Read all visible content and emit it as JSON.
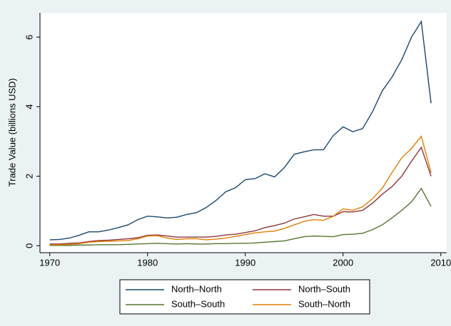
{
  "chart_data": {
    "type": "line",
    "y_label": "Trade Value (billions USD)",
    "x": [
      1970,
      1971,
      1972,
      1973,
      1974,
      1975,
      1976,
      1977,
      1978,
      1979,
      1980,
      1981,
      1982,
      1983,
      1984,
      1985,
      1986,
      1987,
      1988,
      1989,
      1990,
      1991,
      1992,
      1993,
      1994,
      1995,
      1996,
      1997,
      1998,
      1999,
      2000,
      2001,
      2002,
      2003,
      2004,
      2005,
      2006,
      2007,
      2008,
      2009
    ],
    "series": [
      {
        "name": "North–North",
        "color": "#1a476f",
        "values": [
          0.17,
          0.18,
          0.22,
          0.3,
          0.4,
          0.4,
          0.45,
          0.52,
          0.6,
          0.75,
          0.85,
          0.83,
          0.8,
          0.82,
          0.9,
          0.95,
          1.1,
          1.3,
          1.55,
          1.67,
          1.9,
          1.93,
          2.07,
          1.98,
          2.25,
          2.63,
          2.7,
          2.76,
          2.76,
          3.17,
          3.42,
          3.28,
          3.37,
          3.85,
          4.45,
          4.85,
          5.35,
          6.0,
          6.45,
          4.1
        ]
      },
      {
        "name": "North–South",
        "color": "#90353b",
        "values": [
          0.05,
          0.05,
          0.07,
          0.08,
          0.12,
          0.15,
          0.16,
          0.18,
          0.2,
          0.23,
          0.3,
          0.31,
          0.28,
          0.25,
          0.25,
          0.25,
          0.25,
          0.27,
          0.31,
          0.33,
          0.38,
          0.43,
          0.52,
          0.58,
          0.65,
          0.77,
          0.83,
          0.9,
          0.85,
          0.85,
          0.98,
          0.97,
          1.02,
          1.22,
          1.48,
          1.7,
          2.0,
          2.43,
          2.83,
          2.0
        ]
      },
      {
        "name": "South–South",
        "color": "#55752f",
        "values": [
          0.01,
          0.01,
          0.01,
          0.02,
          0.02,
          0.03,
          0.03,
          0.03,
          0.04,
          0.05,
          0.06,
          0.07,
          0.06,
          0.05,
          0.06,
          0.05,
          0.05,
          0.06,
          0.06,
          0.07,
          0.07,
          0.08,
          0.1,
          0.12,
          0.14,
          0.2,
          0.26,
          0.28,
          0.27,
          0.26,
          0.32,
          0.33,
          0.36,
          0.46,
          0.6,
          0.8,
          1.02,
          1.26,
          1.65,
          1.13
        ]
      },
      {
        "name": "South–North",
        "color": "#e37e00",
        "values": [
          0.03,
          0.03,
          0.04,
          0.06,
          0.1,
          0.12,
          0.13,
          0.14,
          0.15,
          0.2,
          0.28,
          0.29,
          0.22,
          0.18,
          0.2,
          0.2,
          0.17,
          0.19,
          0.22,
          0.27,
          0.32,
          0.37,
          0.4,
          0.42,
          0.5,
          0.6,
          0.7,
          0.75,
          0.73,
          0.85,
          1.06,
          1.02,
          1.12,
          1.35,
          1.65,
          2.1,
          2.53,
          2.8,
          3.15,
          2.1
        ]
      }
    ],
    "xlim": [
      1969,
      2010.6
    ],
    "xticks": [
      1970,
      1980,
      1990,
      2000,
      2010
    ],
    "ylim": [
      -0.2,
      6.7
    ],
    "yticks": [
      0,
      2,
      4,
      6
    ],
    "grid": false,
    "legend": "bottom"
  }
}
